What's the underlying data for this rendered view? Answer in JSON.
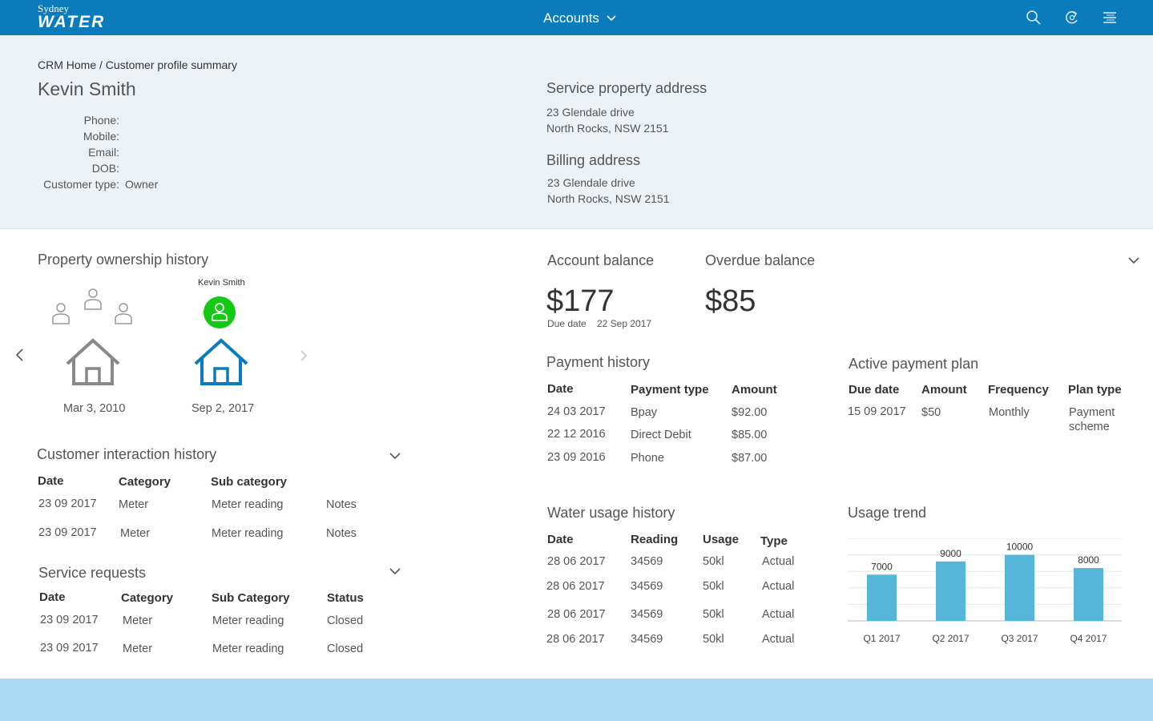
{
  "header": {
    "logo_line1": "Sydney",
    "logo_line2": "WATER",
    "menu_label": "Accounts",
    "icons": [
      "search-icon",
      "refresh-icon",
      "menu-icon"
    ],
    "color": "#0a7bbb"
  },
  "profile": {
    "breadcrumb_home": "CRM Home",
    "breadcrumb_sep": " / ",
    "breadcrumb_current": "Customer profile summary",
    "name": "Kevin Smith",
    "fields": [
      {
        "label": "Phone:",
        "value": ""
      },
      {
        "label": "Mobile:",
        "value": ""
      },
      {
        "label": "Email:",
        "value": ""
      },
      {
        "label": "DOB:",
        "value": ""
      },
      {
        "label": "Customer type:",
        "value": "Owner"
      }
    ],
    "service_title": "Service property address",
    "service_line1": "23 Glendale drive",
    "service_line2": "North Rocks, NSW 2151",
    "billing_title": "Billing address",
    "billing_line1": "23 Glendale drive",
    "billing_line2": "North Rocks, NSW 2151"
  },
  "ownership": {
    "title": "Property ownership history",
    "owner_name": "Kevin Smith",
    "properties": [
      {
        "date": "Mar 3, 2010"
      },
      {
        "date": "Sep 2, 2017"
      }
    ],
    "active_color": "#13c913",
    "house_active_color": "#0a7bbb"
  },
  "interactions": {
    "title": "Customer interaction history",
    "headers": [
      "Date",
      "Category",
      "Sub category"
    ],
    "rows": [
      [
        "23 09 2017",
        "Meter",
        "Meter reading",
        "Notes"
      ],
      [
        "23 09 2017",
        "Meter",
        "Meter reading",
        "Notes"
      ]
    ]
  },
  "service_requests": {
    "title": "Service requests",
    "headers": [
      "Date",
      "Category",
      "Sub Category",
      "Status"
    ],
    "rows": [
      [
        "23 09 2017",
        "Meter",
        "Meter reading",
        "Closed"
      ],
      [
        "23 09 2017",
        "Meter",
        "Meter reading",
        "Closed"
      ]
    ]
  },
  "balance": {
    "account_title": "Account balance",
    "account_amount": "$177",
    "due_label": "Due date",
    "due_date": "22 Sep 2017",
    "overdue_title": "Overdue balance",
    "overdue_amount": "$85"
  },
  "payment_history": {
    "title": "Payment history",
    "headers": [
      "Date",
      "Payment type",
      "Amount"
    ],
    "rows": [
      [
        "24 03 2017",
        "Bpay",
        "$92.00"
      ],
      [
        "22 12 2016",
        "Direct Debit",
        "$85.00"
      ],
      [
        "23 09 2016",
        "Phone",
        "$87.00"
      ]
    ]
  },
  "payment_plan": {
    "title": "Active payment plan",
    "headers": [
      "Due date",
      "Amount",
      "Frequency",
      "Plan type"
    ],
    "row": [
      "15 09 2017",
      "$50",
      "Monthly",
      "Payment",
      "scheme"
    ]
  },
  "water_usage": {
    "title": "Water usage history",
    "headers": [
      "Date",
      "Reading",
      "Usage",
      "Type"
    ],
    "rows": [
      [
        "28 06 2017",
        "34569",
        "50kl",
        "Actual"
      ],
      [
        "28 06 2017",
        "34569",
        "50kl",
        "Actual"
      ],
      [
        "28 06 2017",
        "34569",
        "50kl",
        "Actual"
      ],
      [
        "28 06 2017",
        "34569",
        "50kl",
        "Actual"
      ]
    ]
  },
  "usage_trend": {
    "title": "Usage trend"
  },
  "chart_data": {
    "type": "bar",
    "categories": [
      "Q1 2017",
      "Q2 2017",
      "Q3 2017",
      "Q4 2017"
    ],
    "values": [
      7000,
      9000,
      10000,
      8000
    ],
    "data_labels": [
      "7000",
      "9000",
      "10000",
      "8000"
    ],
    "ylim": [
      0,
      12500
    ],
    "grid": true,
    "bar_color": "#55b6da",
    "title": "",
    "xlabel": "",
    "ylabel": ""
  }
}
